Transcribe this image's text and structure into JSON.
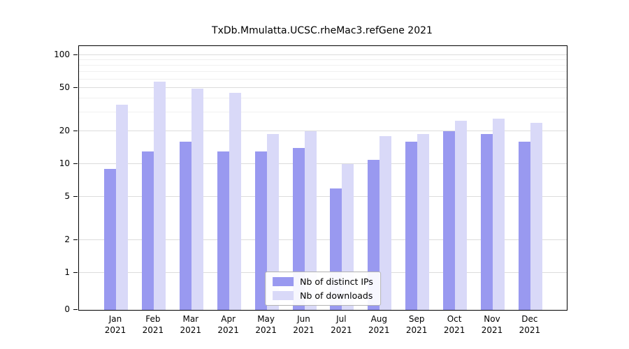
{
  "chart_data": {
    "type": "bar",
    "title": "TxDb.Mmulatta.UCSC.rheMac3.refGene 2021",
    "categories": [
      "Jan 2021",
      "Feb 2021",
      "Mar 2021",
      "Apr 2021",
      "May 2021",
      "Jun 2021",
      "Jul 2021",
      "Aug 2021",
      "Sep 2021",
      "Oct 2021",
      "Nov 2021",
      "Dec 2021"
    ],
    "series": [
      {
        "name": "Nb of distinct IPs",
        "key": "distinct-ips",
        "color": "#9999f0",
        "values": [
          9,
          13,
          16,
          13,
          13,
          14,
          6,
          11,
          16,
          20,
          19,
          16
        ]
      },
      {
        "name": "Nb of downloads",
        "key": "downloads",
        "color": "#d9d9f8",
        "values": [
          35,
          57,
          49,
          45,
          19,
          20,
          10,
          18,
          19,
          25,
          26,
          24
        ]
      }
    ],
    "yticks": [
      0,
      1,
      2,
      5,
      10,
      20,
      50,
      100
    ],
    "minor_yticks": [
      30,
      40,
      60,
      70,
      80,
      90
    ],
    "yscale": "log (with 0 pinned at baseline)",
    "ylim": [
      0,
      100
    ],
    "xlabel": "",
    "ylabel": "",
    "grid": true,
    "legend_position": "bottom-center",
    "colors": {
      "grid_major": "#dcdcdc",
      "grid_minor": "#f0f0f0",
      "axis": "#000000",
      "background": "#ffffff"
    }
  }
}
